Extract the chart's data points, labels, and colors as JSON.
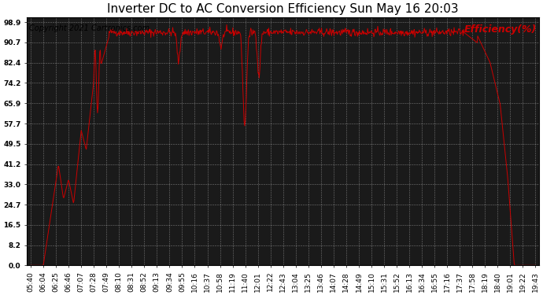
{
  "title": "Inverter DC to AC Conversion Efficiency Sun May 16 20:03",
  "copyright_text": "Copyright 2021 Cartronics.com",
  "legend_label": "Efficiency(%)",
  "line_color": "#cc0000",
  "plot_bg_color": "#1a1a1a",
  "fig_bg_color": "#ffffff",
  "grid_color": "#ffffff",
  "yticks": [
    0.0,
    8.2,
    16.5,
    24.7,
    33.0,
    41.2,
    49.5,
    57.7,
    65.9,
    74.2,
    82.4,
    90.7,
    98.9
  ],
  "xtick_labels": [
    "05:40",
    "06:04",
    "06:25",
    "06:46",
    "07:07",
    "07:28",
    "07:49",
    "08:10",
    "08:31",
    "08:52",
    "09:13",
    "09:34",
    "09:55",
    "10:16",
    "10:37",
    "10:58",
    "11:19",
    "11:40",
    "12:01",
    "12:22",
    "12:43",
    "13:04",
    "13:25",
    "13:46",
    "14:07",
    "14:28",
    "14:49",
    "15:10",
    "15:31",
    "15:52",
    "16:13",
    "16:34",
    "16:55",
    "17:16",
    "17:37",
    "17:58",
    "18:19",
    "18:40",
    "19:01",
    "19:22",
    "19:43"
  ],
  "ylim": [
    0.0,
    101.0
  ],
  "xlim": [
    -0.3,
    40.3
  ],
  "title_fontsize": 11,
  "copyright_fontsize": 7,
  "legend_fontsize": 9,
  "tick_fontsize": 6.5,
  "figsize": [
    6.9,
    3.75
  ],
  "dpi": 100
}
